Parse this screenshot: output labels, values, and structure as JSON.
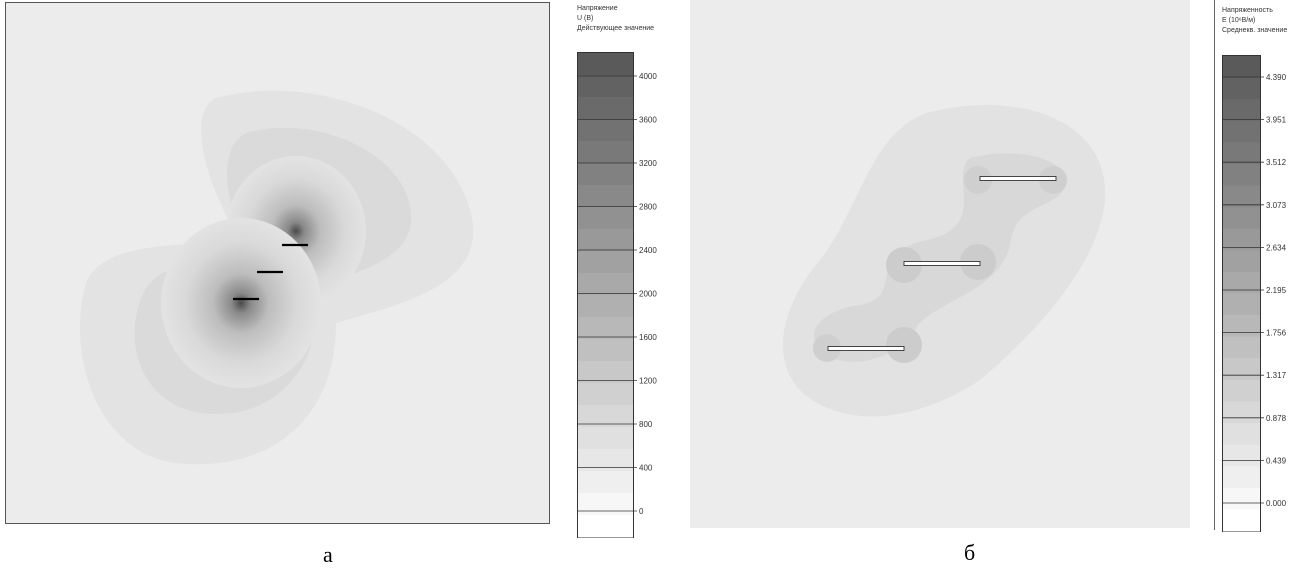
{
  "left_figure": {
    "caption": "а",
    "legend": {
      "title_lines": [
        "Напряжение",
        "U (В)",
        "Действующее значение"
      ],
      "ticks": [
        "4000",
        "3600",
        "3200",
        "2800",
        "2400",
        "2000",
        "1600",
        "1200",
        "800",
        "400",
        "0"
      ],
      "levels": 22
    }
  },
  "right_figure": {
    "caption": "б",
    "legend": {
      "title_lines": [
        "Напряженность",
        "E (10⁶В/м)",
        "Среднекв. значение"
      ],
      "ticks": [
        "4.390",
        "3.951",
        "3.512",
        "3.073",
        "2.634",
        "2.195",
        "1.756",
        "1.317",
        "0.878",
        "0.439",
        "0.000"
      ],
      "levels": 22
    }
  },
  "colors": {
    "background": "#ececec",
    "darkest": "#5a5a5a",
    "lightest": "#ffffff",
    "electrode_a": "#000000",
    "electrode_b": "#ffffff"
  }
}
